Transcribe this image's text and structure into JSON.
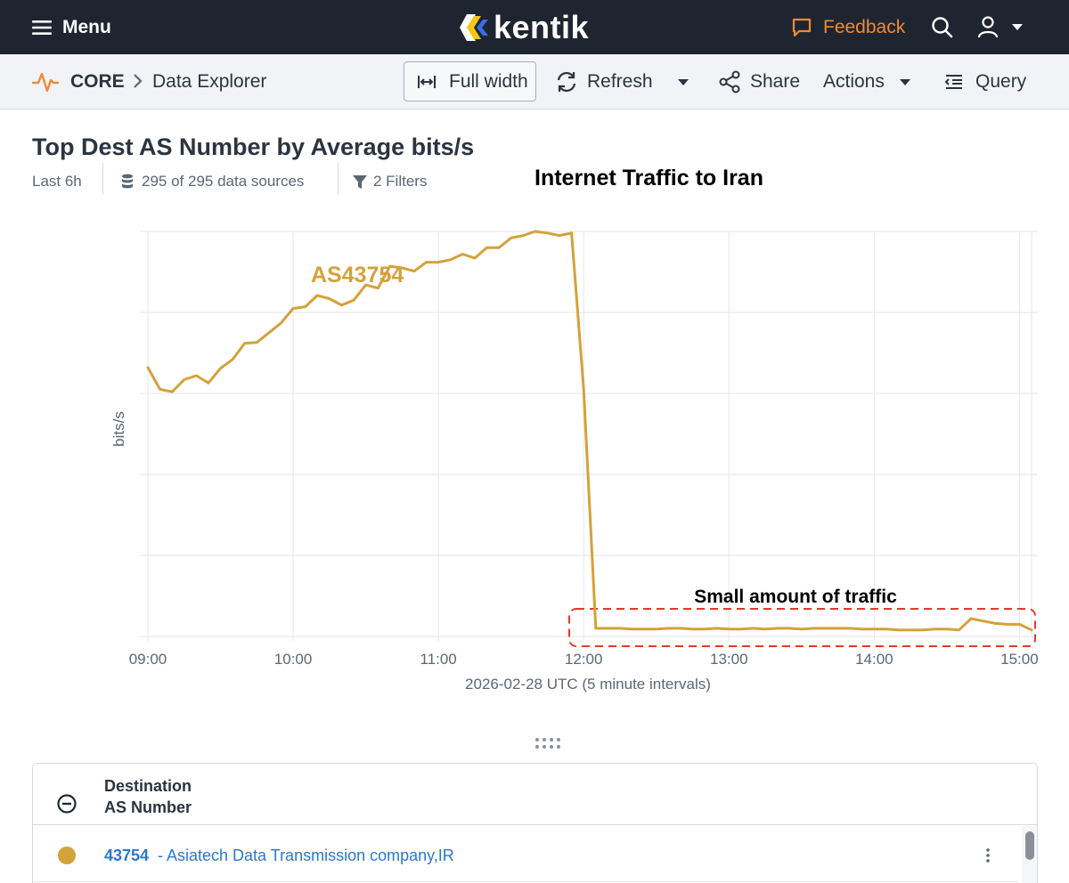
{
  "topbar": {
    "menu_label": "Menu",
    "logo_text": "kentik",
    "feedback_label": "Feedback",
    "brand_color": "#1e2530",
    "feedback_color": "#ee8a36"
  },
  "toolbar": {
    "breadcrumb": {
      "section": "CORE",
      "page": "Data Explorer"
    },
    "full_width_label": "Full width",
    "refresh_label": "Refresh",
    "share_label": "Share",
    "actions_label": "Actions",
    "query_label": "Query"
  },
  "header": {
    "title": "Top Dest AS Number by Average bits/s",
    "time_range": "Last 6h",
    "data_sources": "295 of 295 data sources",
    "filters": "2 Filters"
  },
  "annotations": {
    "headline": "Internet Traffic to Iran",
    "series_label": "AS43754",
    "box_label": "Small amount of traffic"
  },
  "chart_data": {
    "type": "line",
    "title": "",
    "xlabel": "2026-02-28 UTC (5 minute intervals)",
    "ylabel": "bits/s",
    "x_ticks": [
      "09:00",
      "10:00",
      "11:00",
      "12:00",
      "13:00",
      "14:00",
      "15:00"
    ],
    "xlim": [
      "09:00",
      "15:05"
    ],
    "ylim": [
      0,
      5
    ],
    "y_tick_labels_shown": false,
    "grid": true,
    "x": [
      "09:00",
      "09:05",
      "09:10",
      "09:15",
      "09:20",
      "09:25",
      "09:30",
      "09:35",
      "09:40",
      "09:45",
      "09:50",
      "09:55",
      "10:00",
      "10:05",
      "10:10",
      "10:15",
      "10:20",
      "10:25",
      "10:30",
      "10:35",
      "10:40",
      "10:45",
      "10:50",
      "10:55",
      "11:00",
      "11:05",
      "11:10",
      "11:15",
      "11:20",
      "11:25",
      "11:30",
      "11:35",
      "11:40",
      "11:45",
      "11:50",
      "11:55",
      "12:00",
      "12:05",
      "12:10",
      "12:15",
      "12:20",
      "12:25",
      "12:30",
      "12:35",
      "12:40",
      "12:45",
      "12:50",
      "12:55",
      "13:00",
      "13:05",
      "13:10",
      "13:15",
      "13:20",
      "13:25",
      "13:30",
      "13:35",
      "13:40",
      "13:45",
      "13:50",
      "13:55",
      "14:00",
      "14:05",
      "14:10",
      "14:15",
      "14:20",
      "14:25",
      "14:30",
      "14:35",
      "14:40",
      "14:45",
      "14:50",
      "14:55",
      "15:00",
      "15:05"
    ],
    "series": [
      {
        "name": "AS43754",
        "color": "#d4a23a",
        "values": [
          3.32,
          3.05,
          3.02,
          3.17,
          3.22,
          3.13,
          3.31,
          3.42,
          3.62,
          3.63,
          3.75,
          3.87,
          4.05,
          4.07,
          4.21,
          4.17,
          4.09,
          4.15,
          4.34,
          4.3,
          4.57,
          4.55,
          4.51,
          4.62,
          4.62,
          4.65,
          4.72,
          4.67,
          4.8,
          4.8,
          4.92,
          4.95,
          5.0,
          4.98,
          4.95,
          4.98,
          3.05,
          0.1,
          0.1,
          0.1,
          0.09,
          0.09,
          0.09,
          0.1,
          0.1,
          0.09,
          0.09,
          0.1,
          0.09,
          0.09,
          0.1,
          0.09,
          0.1,
          0.1,
          0.09,
          0.1,
          0.1,
          0.1,
          0.1,
          0.09,
          0.09,
          0.09,
          0.08,
          0.08,
          0.08,
          0.09,
          0.09,
          0.08,
          0.22,
          0.19,
          0.16,
          0.15,
          0.15,
          0.08
        ]
      }
    ]
  },
  "table": {
    "header": "Destination AS Number",
    "header_line1": "Destination",
    "header_line2": "AS Number",
    "rows": [
      {
        "asn": "43754",
        "name": "- Asiatech Data Transmission company,IR",
        "color": "#d4a23a"
      }
    ]
  }
}
